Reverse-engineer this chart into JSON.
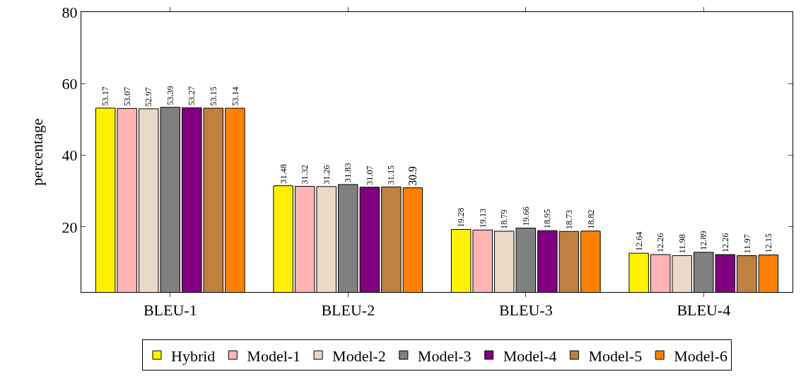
{
  "chart_data": {
    "type": "bar",
    "ylabel": "percentage",
    "categories": [
      "BLEU-1",
      "BLEU-2",
      "BLEU-3",
      "BLEU-4"
    ],
    "series": [
      {
        "name": "Hybrid",
        "color": "#fff200",
        "values": [
          53.17,
          31.48,
          19.28,
          12.64
        ]
      },
      {
        "name": "Model-1",
        "color": "#ffb3b3",
        "values": [
          53.07,
          31.32,
          19.13,
          12.26
        ]
      },
      {
        "name": "Model-2",
        "color": "#ead9c6",
        "values": [
          52.97,
          31.26,
          18.79,
          11.98
        ]
      },
      {
        "name": "Model-3",
        "color": "#808080",
        "values": [
          53.39,
          31.83,
          19.66,
          12.89
        ]
      },
      {
        "name": "Model-4",
        "color": "#800080",
        "values": [
          53.27,
          31.07,
          18.95,
          12.26
        ]
      },
      {
        "name": "Model-5",
        "color": "#bf8040",
        "values": [
          53.15,
          31.15,
          18.73,
          11.97
        ]
      },
      {
        "name": "Model-6",
        "color": "#ff8000",
        "values": [
          53.14,
          30.9,
          18.82,
          12.15
        ]
      }
    ],
    "ylim": [
      1.8,
      80
    ],
    "yticks": [
      20,
      40,
      60,
      80
    ],
    "grid": false,
    "legend": "bottom",
    "data_labels": true
  }
}
